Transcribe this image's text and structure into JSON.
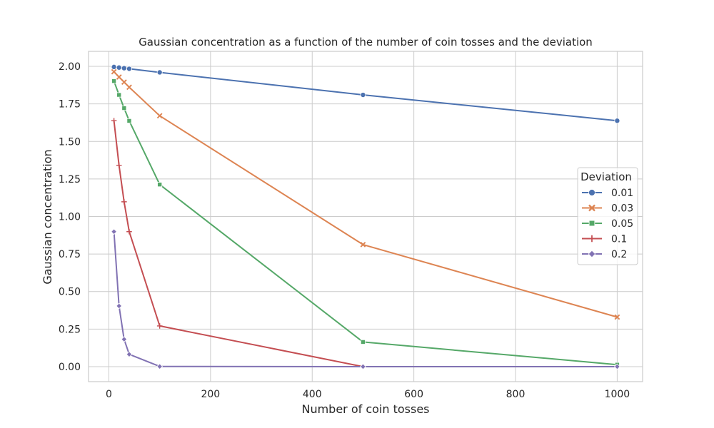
{
  "chart_data": {
    "type": "line",
    "title": "Gaussian concentration as a function of the number of coin tosses and the deviation",
    "xlabel": "Number of coin tosses",
    "ylabel": "Gaussian concentration",
    "xlim": [
      -40,
      1050
    ],
    "ylim": [
      -0.1,
      2.1
    ],
    "xticks": [
      0,
      200,
      400,
      600,
      800,
      1000
    ],
    "yticks": [
      0.0,
      0.25,
      0.5,
      0.75,
      1.0,
      1.25,
      1.5,
      1.75,
      2.0
    ],
    "grid": true,
    "x": [
      10,
      20,
      30,
      40,
      100,
      500,
      1000
    ],
    "legend": {
      "title": "Deviation",
      "placement": "center-right"
    },
    "series": [
      {
        "name": "0.01",
        "color": "#4c72b0",
        "marker": "circle",
        "values": [
          1.996,
          1.992,
          1.988,
          1.984,
          1.96,
          1.81,
          1.638
        ]
      },
      {
        "name": "0.03",
        "color": "#dd8452",
        "marker": "x",
        "values": [
          1.964,
          1.929,
          1.895,
          1.861,
          1.671,
          0.813,
          0.33
        ]
      },
      {
        "name": "0.05",
        "color": "#55a868",
        "marker": "square",
        "values": [
          1.902,
          1.81,
          1.722,
          1.637,
          1.213,
          0.164,
          0.013
        ]
      },
      {
        "name": "0.1",
        "color": "#c44e52",
        "marker": "plus",
        "values": [
          1.638,
          1.341,
          1.098,
          0.899,
          0.271,
          0.0,
          0.0
        ]
      },
      {
        "name": "0.2",
        "color": "#8172b3",
        "marker": "diamond",
        "values": [
          0.899,
          0.404,
          0.182,
          0.082,
          0.001,
          0.0,
          0.0
        ]
      }
    ]
  }
}
